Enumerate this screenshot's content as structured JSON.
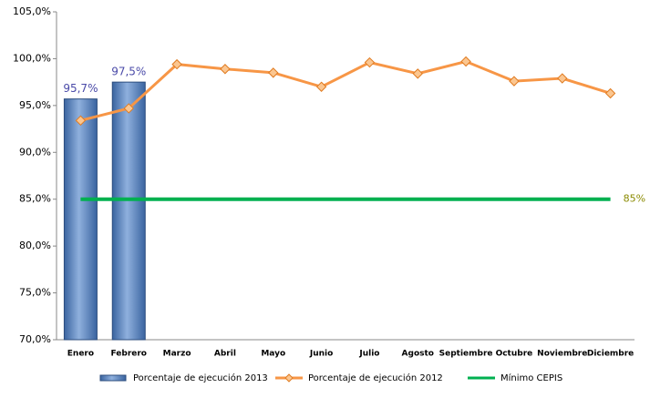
{
  "chart_data": {
    "type": "bar",
    "categories": [
      "Enero",
      "Febrero",
      "Marzo",
      "Abril",
      "Mayo",
      "Junio",
      "Julio",
      "Agosto",
      "Septiembre",
      "Octubre",
      "Noviembre",
      "Diciembre"
    ],
    "series": [
      {
        "name": "Porcentaje de ejecución 2013",
        "type": "bar",
        "color": "#4f81bd",
        "values": [
          95.7,
          97.5,
          null,
          null,
          null,
          null,
          null,
          null,
          null,
          null,
          null,
          null
        ],
        "value_labels": [
          "95,7%",
          "97,5%",
          null,
          null,
          null,
          null,
          null,
          null,
          null,
          null,
          null,
          null
        ]
      },
      {
        "name": "Porcentaje de ejecución 2012",
        "type": "line",
        "color": "#f79646",
        "values": [
          93.4,
          94.7,
          99.4,
          98.9,
          98.5,
          97.0,
          99.6,
          98.4,
          99.7,
          97.6,
          97.9,
          96.3
        ]
      },
      {
        "name": "Mínimo CEPIS",
        "type": "line",
        "color": "#00b050",
        "values": [
          85,
          85,
          85,
          85,
          85,
          85,
          85,
          85,
          85,
          85,
          85,
          85
        ],
        "value_labels": [
          null,
          null,
          null,
          null,
          null,
          null,
          null,
          null,
          null,
          null,
          null,
          "85%"
        ]
      }
    ],
    "ylim": [
      70,
      105
    ],
    "yticks": [
      {
        "value": 70,
        "label": "70,0%"
      },
      {
        "value": 75,
        "label": "75,0%"
      },
      {
        "value": 80,
        "label": "80,0%"
      },
      {
        "value": 85,
        "label": "85,0%"
      },
      {
        "value": 90,
        "label": "90,0%"
      },
      {
        "value": 95,
        "label": "95,0%"
      },
      {
        "value": 100,
        "label": "100,0%"
      },
      {
        "value": 105,
        "label": "105,0%"
      }
    ],
    "legend": "bottom",
    "grid": false
  }
}
